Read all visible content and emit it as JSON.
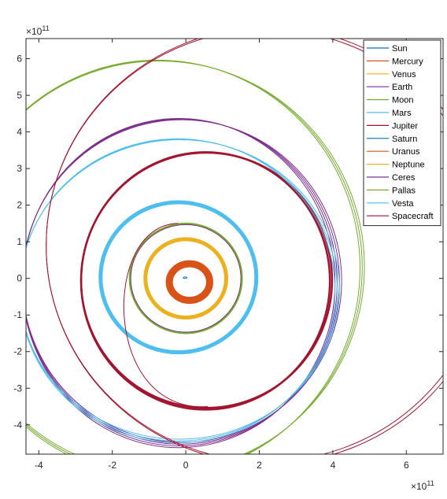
{
  "chart_data": {
    "type": "line",
    "title": "",
    "xlabel": "",
    "ylabel": "",
    "x_multiplier_label": "×10",
    "x_multiplier_exp": "11",
    "y_multiplier_label": "×10",
    "y_multiplier_exp": "11",
    "xlim": [
      -4.35,
      7.0
    ],
    "ylim": [
      -4.8,
      6.55
    ],
    "x_ticks": [
      -4,
      -2,
      0,
      2,
      4,
      6
    ],
    "y_ticks": [
      -4,
      -3,
      -2,
      -1,
      0,
      1,
      2,
      3,
      4,
      5,
      6
    ],
    "x_tick_labels": [
      "-4",
      "-2",
      "0",
      "2",
      "4",
      "6"
    ],
    "y_tick_labels": [
      "-4",
      "-3",
      "-2",
      "-1",
      "0",
      "1",
      "2",
      "3",
      "4",
      "5",
      "6"
    ],
    "grid": false,
    "legend_position": "top-right",
    "series": [
      {
        "name": "Sun",
        "color": "#0072BD",
        "cx": -0.02,
        "cy": 0.02,
        "rx": 0.05,
        "ry": 0.02,
        "width": 1,
        "strands": 1
      },
      {
        "name": "Mercury",
        "color": "#D95319",
        "cx": 0.1,
        "cy": -0.1,
        "rx": 0.55,
        "ry": 0.5,
        "width": 9,
        "strands": 1
      },
      {
        "name": "Venus",
        "color": "#EDB120",
        "cx": 0.0,
        "cy": 0.0,
        "rx": 1.1,
        "ry": 1.07,
        "width": 5,
        "strands": 1
      },
      {
        "name": "Earth",
        "color": "#7E2F8E",
        "cx": 0.0,
        "cy": 0.0,
        "rx": 1.51,
        "ry": 1.48,
        "width": 2,
        "strands": 1
      },
      {
        "name": "Moon",
        "color": "#77AC30",
        "cx": 0.0,
        "cy": 0.0,
        "rx": 1.53,
        "ry": 1.5,
        "width": 2,
        "strands": 1
      },
      {
        "name": "Mars",
        "color": "#4DBEEE",
        "cx": -0.2,
        "cy": 0.03,
        "rx": 2.12,
        "ry": 2.05,
        "width": 5,
        "strands": 1
      },
      {
        "name": "Jupiter",
        "color": "#A2142F",
        "cx": 0.55,
        "cy": -0.06,
        "rx": 3.4,
        "ry": 3.5,
        "width": 2.5,
        "strands": 2
      },
      {
        "name": "Saturn",
        "color": "#0072BD",
        "cx": 0.0,
        "cy": 0.0,
        "rx": 0.0,
        "ry": 0.0,
        "width": 1,
        "strands": 0
      },
      {
        "name": "Uranus",
        "color": "#D95319",
        "cx": 0.0,
        "cy": 0.0,
        "rx": 0.0,
        "ry": 0.0,
        "width": 1,
        "strands": 0
      },
      {
        "name": "Neptune",
        "color": "#EDB120",
        "cx": 0.0,
        "cy": 0.0,
        "rx": 0.0,
        "ry": 0.0,
        "width": 1,
        "strands": 0
      },
      {
        "name": "Ceres",
        "color": "#7E2F8E",
        "cx": -0.15,
        "cy": -0.1,
        "rx": 4.3,
        "ry": 4.45,
        "width": 1,
        "strands": 4
      },
      {
        "name": "Pallas",
        "color": "#77AC30",
        "cx": -0.75,
        "cy": 0.3,
        "rx": 5.55,
        "ry": 5.65,
        "width": 1,
        "strands": 3
      },
      {
        "name": "Vesta",
        "color": "#4DBEEE",
        "cx": -0.2,
        "cy": -0.32,
        "rx": 4.32,
        "ry": 4.12,
        "width": 1,
        "strands": 3
      },
      {
        "name": "Spacecraft",
        "color": "#A2142F",
        "cx": 0.0,
        "cy": 0.0,
        "rx": 0.0,
        "ry": 0.0,
        "width": 1,
        "strands": 0
      }
    ]
  }
}
